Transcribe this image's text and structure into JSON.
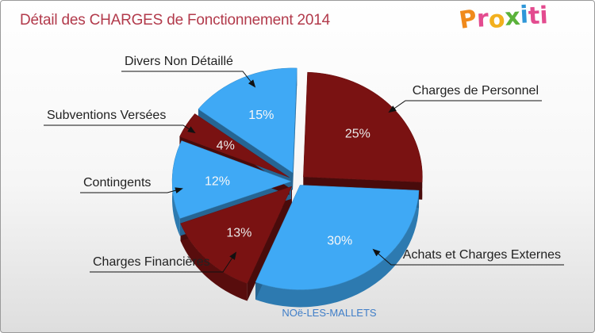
{
  "chart_data": {
    "type": "pie",
    "title": "Détail des CHARGES de Fonctionnement 2014",
    "subtitle": "NOë-LES-MALLETS",
    "categories": [
      "Charges de Personnel",
      "Achats et Charges Externes",
      "Charges Financières",
      "Contingents",
      "Subventions Versées",
      "Divers Non Détaillé"
    ],
    "values": [
      25,
      30,
      13,
      12,
      4,
      15
    ],
    "value_labels": [
      "25%",
      "30%",
      "13%",
      "12%",
      "4%",
      "15%"
    ],
    "colors": [
      "#7a1212",
      "#3fa9f5",
      "#7a1212",
      "#3fa9f5",
      "#7a1212",
      "#3fa9f5"
    ],
    "legend": "none",
    "grid": false
  },
  "logo": {
    "letters": [
      "P",
      "r",
      "o",
      "x",
      "i",
      "t",
      "i"
    ]
  }
}
